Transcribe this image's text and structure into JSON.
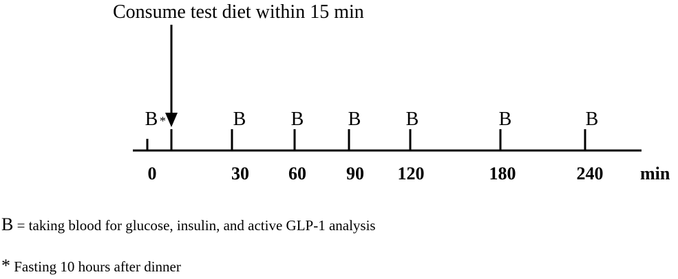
{
  "annotation": {
    "text": "Consume test diet within 15 min"
  },
  "timeline": {
    "unit": "min",
    "ticks": [
      {
        "label": "0",
        "marker": "B",
        "star": "*"
      },
      {
        "label": "30",
        "marker": "B"
      },
      {
        "label": "60",
        "marker": "B"
      },
      {
        "label": "90",
        "marker": "B"
      },
      {
        "label": "120",
        "marker": "B"
      },
      {
        "label": "180",
        "marker": "B"
      },
      {
        "label": "240",
        "marker": "B"
      }
    ]
  },
  "legend": {
    "b_symbol": "B",
    "b_text": " = taking blood for glucose, insulin, and active GLP-1 analysis",
    "star_symbol": "*",
    "star_text": " Fasting 10 hours after dinner"
  }
}
